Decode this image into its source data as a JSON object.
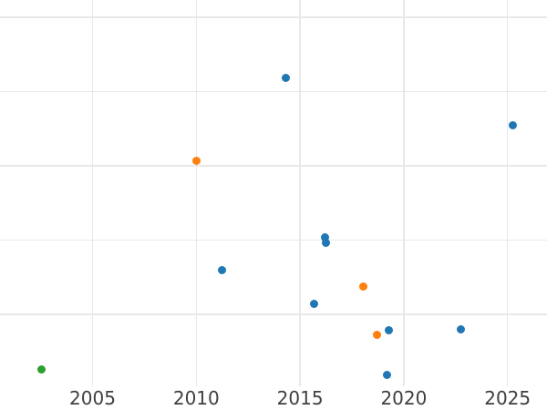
{
  "chart_data": {
    "type": "scatter",
    "title": "",
    "xlabel": "",
    "ylabel": "",
    "grid": true,
    "legend": "none",
    "background_color": "#ffffff",
    "grid_color": "#e8e8e8",
    "tick_label_color": "#404040",
    "x_axis": {
      "tick_labels": [
        "2005",
        "2010",
        "2015",
        "2020",
        "2025"
      ],
      "tick_values": [
        2005,
        2010,
        2015,
        2020,
        2025
      ],
      "xlim": [
        2000.54,
        2026.9
      ]
    },
    "y_axis": {
      "labels_visible": false,
      "units": "gridline-index (no y tick labels visible in image)",
      "gridline_values": [
        1,
        2,
        3,
        4,
        5
      ],
      "ylim": [
        0.02,
        5.23
      ]
    },
    "series": [
      {
        "name": "blue",
        "color": "#1f77b4",
        "points": [
          {
            "x": 2014.3,
            "y": 4.19
          },
          {
            "x": 2025.24,
            "y": 3.55
          },
          {
            "x": 2016.19,
            "y": 2.04
          },
          {
            "x": 2016.25,
            "y": 1.96
          },
          {
            "x": 2011.22,
            "y": 1.6
          },
          {
            "x": 2015.66,
            "y": 1.14
          },
          {
            "x": 2019.28,
            "y": 0.79
          },
          {
            "x": 2022.77,
            "y": 0.8
          },
          {
            "x": 2019.17,
            "y": 0.18
          }
        ]
      },
      {
        "name": "orange",
        "color": "#ff7f0e",
        "points": [
          {
            "x": 2010.03,
            "y": 3.07
          },
          {
            "x": 2018.07,
            "y": 1.37
          },
          {
            "x": 2018.73,
            "y": 0.73
          }
        ]
      },
      {
        "name": "green",
        "color": "#2ca02c",
        "points": [
          {
            "x": 2002.52,
            "y": 0.26
          }
        ]
      }
    ]
  }
}
